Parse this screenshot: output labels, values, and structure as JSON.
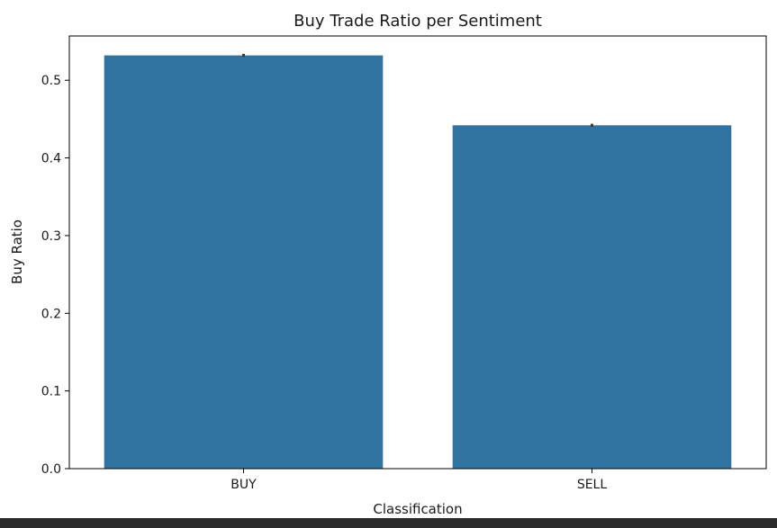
{
  "chart_data": {
    "type": "bar",
    "title": "Buy Trade Ratio per Sentiment",
    "xlabel": "Classification",
    "ylabel": "Buy Ratio",
    "categories": [
      "BUY",
      "SELL"
    ],
    "values": [
      0.532,
      0.442
    ],
    "error_bars": [
      [
        0.53,
        0.534
      ],
      [
        0.44,
        0.444
      ]
    ],
    "ylim": [
      0,
      0.557
    ],
    "yticks": [
      0.0,
      0.1,
      0.2,
      0.3,
      0.4,
      0.5
    ],
    "ytick_labels": [
      "0.0",
      "0.1",
      "0.2",
      "0.3",
      "0.4",
      "0.5"
    ],
    "grid": false,
    "colors": {
      "bar": "#3274a1",
      "error": "#3d3d3d"
    }
  }
}
